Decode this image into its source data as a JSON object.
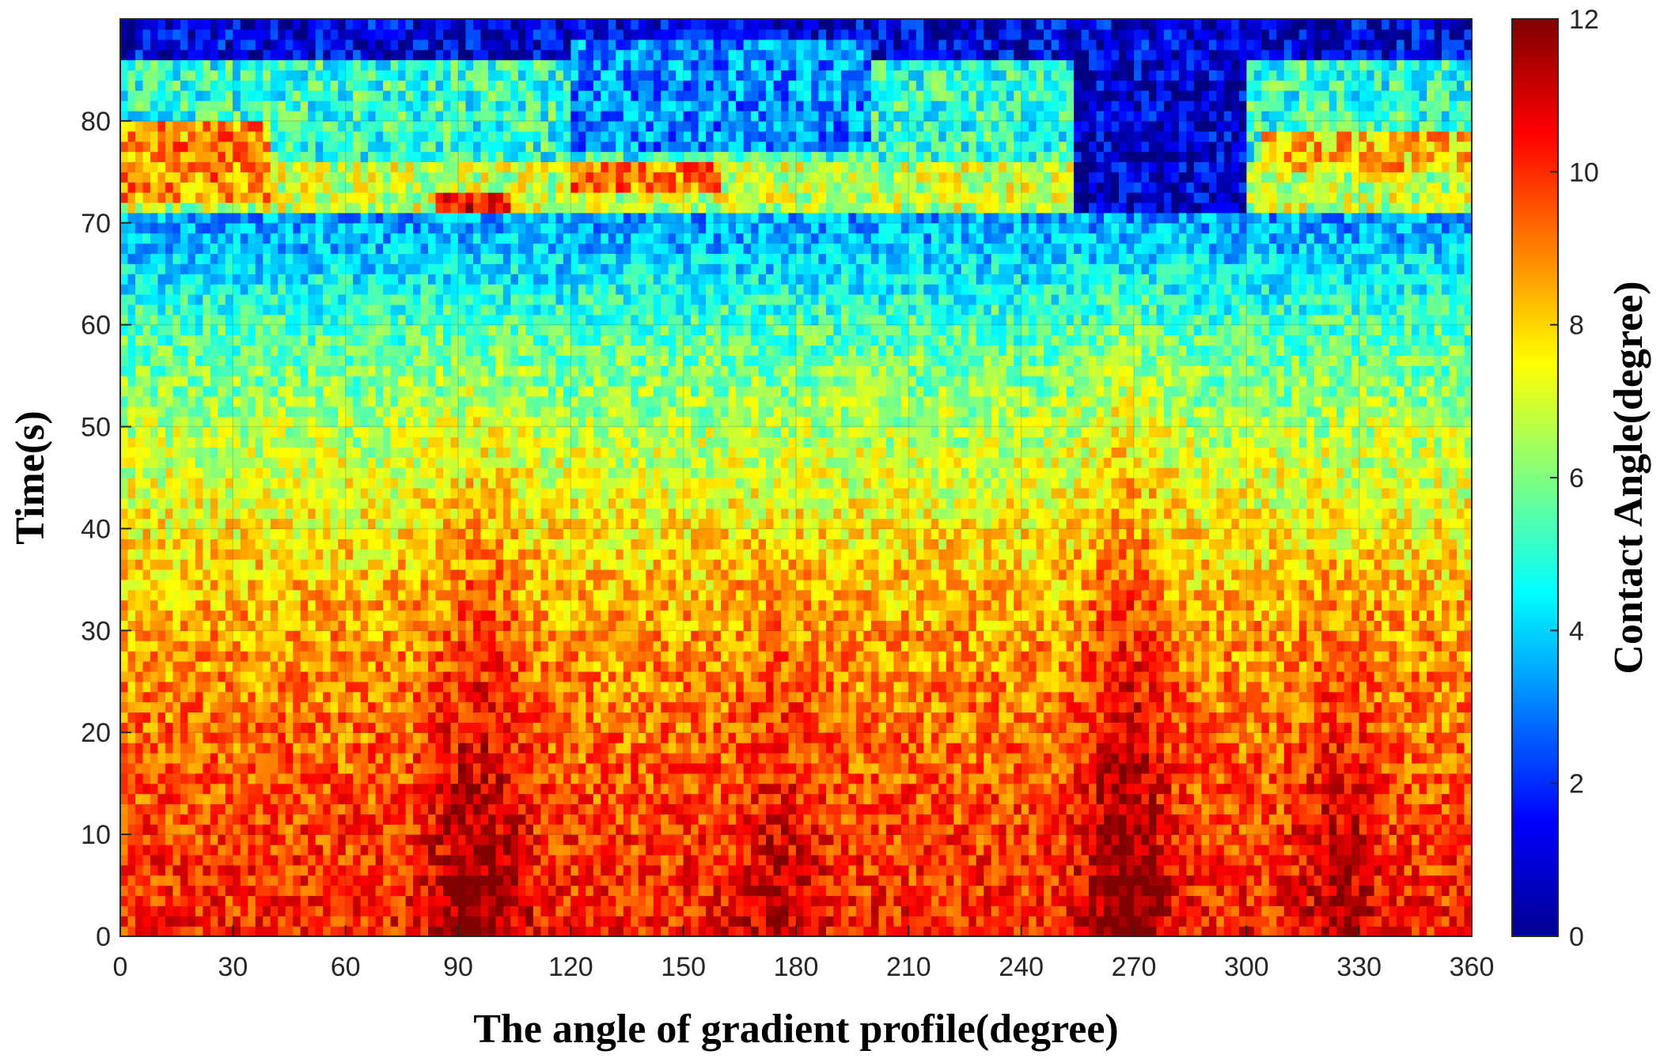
{
  "chart_data": {
    "type": "heatmap",
    "title": "",
    "xlabel": "The angle of gradient profile(degree)",
    "ylabel": "Time(s)",
    "colorbar_label": "Contact Angle(degree)",
    "colormap": "jet",
    "xlim": [
      0,
      360
    ],
    "ylim": [
      0,
      90
    ],
    "clim": [
      0,
      12
    ],
    "x_ticks": [
      0,
      30,
      60,
      90,
      120,
      150,
      180,
      210,
      240,
      270,
      300,
      330,
      360
    ],
    "y_ticks": [
      0,
      10,
      20,
      30,
      40,
      50,
      60,
      70,
      80
    ],
    "colorbar_ticks": [
      0,
      2,
      4,
      6,
      8,
      10,
      12
    ],
    "grid": true,
    "cell_size": {
      "x_degree": 2,
      "y_second": 1
    },
    "value_profile_by_time": [
      {
        "time": 0,
        "value": 10.2
      },
      {
        "time": 10,
        "value": 9.8
      },
      {
        "time": 20,
        "value": 9.2
      },
      {
        "time": 30,
        "value": 8.6
      },
      {
        "time": 40,
        "value": 7.6
      },
      {
        "time": 50,
        "value": 6.6
      },
      {
        "time": 60,
        "value": 5.3
      },
      {
        "time": 65,
        "value": 4.3
      },
      {
        "time": 70,
        "value": 3.4
      }
    ],
    "high_ridges": [
      {
        "angle": 95,
        "peak_boost": 2.0,
        "width": 9,
        "max_time": 62
      },
      {
        "angle": 175,
        "peak_boost": 1.2,
        "width": 8,
        "max_time": 40
      },
      {
        "angle": 268,
        "peak_boost": 2.4,
        "width": 8,
        "max_time": 66
      },
      {
        "angle": 325,
        "peak_boost": 1.6,
        "width": 7,
        "max_time": 38
      }
    ],
    "upper_region": {
      "start_time": 71,
      "bands": [
        {
          "time_range": [
            71,
            76
          ],
          "value": 6.8
        },
        {
          "time_range": [
            76,
            86
          ],
          "value": 5.0
        },
        {
          "time_range": [
            86,
            90
          ],
          "value": 1.2
        }
      ],
      "low_patches": [
        {
          "angle_range": [
            255,
            300
          ],
          "time_range": [
            71,
            86
          ],
          "value": 1.0
        },
        {
          "angle_range": [
            120,
            200
          ],
          "time_range": [
            77,
            88
          ],
          "value": 3.2
        }
      ],
      "high_patches": [
        {
          "angle_range": [
            0,
            40
          ],
          "time_range": [
            72,
            80
          ],
          "value": 8.8
        },
        {
          "angle_range": [
            85,
            105
          ],
          "time_range": [
            71,
            73
          ],
          "value": 10.5
        },
        {
          "angle_range": [
            120,
            160
          ],
          "time_range": [
            73,
            76
          ],
          "value": 9.0
        },
        {
          "angle_range": [
            305,
            360
          ],
          "time_range": [
            75,
            79
          ],
          "value": 8.2
        }
      ]
    }
  }
}
